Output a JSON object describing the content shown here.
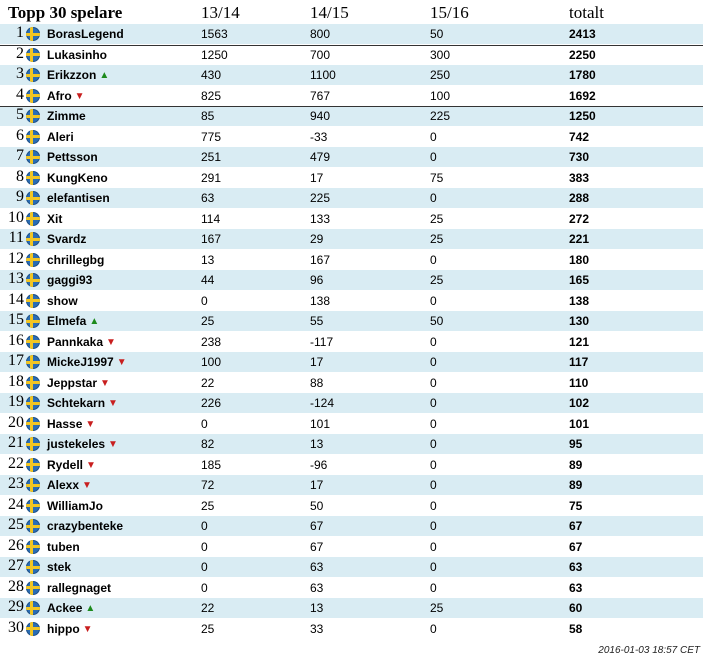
{
  "header": {
    "title": "Topp 30 spelare",
    "col1": "13/14",
    "col2": "14/15",
    "col3": "15/16",
    "total": "totalt"
  },
  "footer": {
    "timestamp": "2016-01-03 18:57 CET"
  },
  "rows": [
    {
      "rank": "1",
      "name": "BorasLegend",
      "trend": "",
      "c1": "1563",
      "c2": "800",
      "c3": "50",
      "total": "2413"
    },
    {
      "rank": "2",
      "name": "Lukasinho",
      "trend": "",
      "c1": "1250",
      "c2": "700",
      "c3": "300",
      "total": "2250"
    },
    {
      "rank": "3",
      "name": "Erikzzon",
      "trend": "up",
      "c1": "430",
      "c2": "1100",
      "c3": "250",
      "total": "1780"
    },
    {
      "rank": "4",
      "name": "Afro",
      "trend": "down",
      "c1": "825",
      "c2": "767",
      "c3": "100",
      "total": "1692"
    },
    {
      "rank": "5",
      "name": "Zimme",
      "trend": "",
      "c1": "85",
      "c2": "940",
      "c3": "225",
      "total": "1250"
    },
    {
      "rank": "6",
      "name": "Aleri",
      "trend": "",
      "c1": "775",
      "c2": "-33",
      "c3": "0",
      "total": "742"
    },
    {
      "rank": "7",
      "name": "Pettsson",
      "trend": "",
      "c1": "251",
      "c2": "479",
      "c3": "0",
      "total": "730"
    },
    {
      "rank": "8",
      "name": "KungKeno",
      "trend": "",
      "c1": "291",
      "c2": "17",
      "c3": "75",
      "total": "383"
    },
    {
      "rank": "9",
      "name": "elefantisen",
      "trend": "",
      "c1": "63",
      "c2": "225",
      "c3": "0",
      "total": "288"
    },
    {
      "rank": "10",
      "name": "Xit",
      "trend": "",
      "c1": "114",
      "c2": "133",
      "c3": "25",
      "total": "272"
    },
    {
      "rank": "11",
      "name": "Svardz",
      "trend": "",
      "c1": "167",
      "c2": "29",
      "c3": "25",
      "total": "221"
    },
    {
      "rank": "12",
      "name": "chrillegbg",
      "trend": "",
      "c1": "13",
      "c2": "167",
      "c3": "0",
      "total": "180"
    },
    {
      "rank": "13",
      "name": "gaggi93",
      "trend": "",
      "c1": "44",
      "c2": "96",
      "c3": "25",
      "total": "165"
    },
    {
      "rank": "14",
      "name": "show",
      "trend": "",
      "c1": "0",
      "c2": "138",
      "c3": "0",
      "total": "138"
    },
    {
      "rank": "15",
      "name": "Elmefa",
      "trend": "up",
      "c1": "25",
      "c2": "55",
      "c3": "50",
      "total": "130"
    },
    {
      "rank": "16",
      "name": "Pannkaka",
      "trend": "down",
      "c1": "238",
      "c2": "-117",
      "c3": "0",
      "total": "121"
    },
    {
      "rank": "17",
      "name": "MickeJ1997",
      "trend": "down",
      "c1": "100",
      "c2": "17",
      "c3": "0",
      "total": "117"
    },
    {
      "rank": "18",
      "name": "Jeppstar",
      "trend": "down",
      "c1": "22",
      "c2": "88",
      "c3": "0",
      "total": "110"
    },
    {
      "rank": "19",
      "name": "Schtekarn",
      "trend": "down",
      "c1": "226",
      "c2": "-124",
      "c3": "0",
      "total": "102"
    },
    {
      "rank": "20",
      "name": "Hasse",
      "trend": "down",
      "c1": "0",
      "c2": "101",
      "c3": "0",
      "total": "101"
    },
    {
      "rank": "21",
      "name": "justekeles",
      "trend": "down",
      "c1": "82",
      "c2": "13",
      "c3": "0",
      "total": "95"
    },
    {
      "rank": "22",
      "name": "Rydell",
      "trend": "down",
      "c1": "185",
      "c2": "-96",
      "c3": "0",
      "total": "89"
    },
    {
      "rank": "23",
      "name": "Alexx",
      "trend": "down",
      "c1": "72",
      "c2": "17",
      "c3": "0",
      "total": "89"
    },
    {
      "rank": "24",
      "name": "WilliamJo",
      "trend": "",
      "c1": "25",
      "c2": "50",
      "c3": "0",
      "total": "75"
    },
    {
      "rank": "25",
      "name": "crazybenteke",
      "trend": "",
      "c1": "0",
      "c2": "67",
      "c3": "0",
      "total": "67"
    },
    {
      "rank": "26",
      "name": "tuben",
      "trend": "",
      "c1": "0",
      "c2": "67",
      "c3": "0",
      "total": "67"
    },
    {
      "rank": "27",
      "name": "stek",
      "trend": "",
      "c1": "0",
      "c2": "63",
      "c3": "0",
      "total": "63"
    },
    {
      "rank": "28",
      "name": "rallegnaget",
      "trend": "",
      "c1": "0",
      "c2": "63",
      "c3": "0",
      "total": "63"
    },
    {
      "rank": "29",
      "name": "Ackee",
      "trend": "up",
      "c1": "22",
      "c2": "13",
      "c3": "25",
      "total": "60"
    },
    {
      "rank": "30",
      "name": "hippo",
      "trend": "down",
      "c1": "25",
      "c2": "33",
      "c3": "0",
      "total": "58"
    }
  ]
}
